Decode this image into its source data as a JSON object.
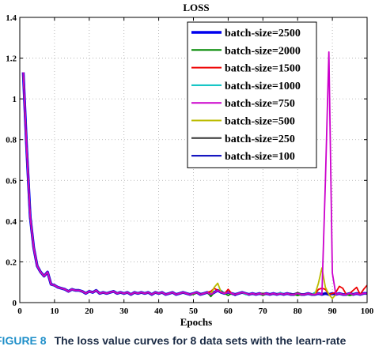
{
  "caption": {
    "label": "FIGURE 8",
    "text": "The loss value curves for 8 data sets with the learn-rate"
  },
  "chart_data": {
    "type": "line",
    "title": "LOSS",
    "xlabel": "Epochs",
    "ylabel": "",
    "xlim": [
      0,
      100
    ],
    "ylim": [
      0,
      1.4
    ],
    "xticks": [
      0,
      10,
      20,
      30,
      40,
      50,
      60,
      70,
      80,
      90,
      100
    ],
    "yticks": [
      0,
      0.2,
      0.4,
      0.6,
      0.8,
      1,
      1.2,
      1.4
    ],
    "ytick_labels": [
      "0",
      "0.2",
      "0.4",
      "0.6",
      "0.8",
      "1",
      "1.2",
      "1.4"
    ],
    "grid": true,
    "legend_position": "top-right",
    "colors": [
      "#0000ee",
      "#008800",
      "#ee0000",
      "#00c0c0",
      "#cc00cc",
      "#bbbb00",
      "#333333",
      "#0000bb"
    ],
    "base_curve": {
      "x": [
        1,
        2,
        3,
        4,
        5,
        6,
        7,
        8,
        9,
        10,
        11,
        12,
        13,
        14,
        15,
        16,
        17,
        18,
        19,
        20,
        21,
        22,
        23,
        24,
        25,
        26,
        27,
        28,
        29,
        30,
        31,
        32,
        33,
        34,
        35,
        36,
        37,
        38,
        39,
        40,
        41,
        42,
        43,
        44,
        45,
        46,
        47,
        48,
        49,
        50,
        51,
        52,
        53,
        54,
        55,
        56,
        57,
        58,
        59,
        60,
        61,
        62,
        63,
        64,
        65,
        66,
        67,
        68,
        69,
        70,
        71,
        72,
        73,
        74,
        75,
        76,
        77,
        78,
        79,
        80,
        81,
        82,
        83,
        84,
        85,
        86,
        87,
        88,
        89,
        90,
        91,
        92,
        93,
        94,
        95,
        96,
        97,
        98,
        99,
        100
      ],
      "y": [
        1.13,
        0.75,
        0.42,
        0.27,
        0.18,
        0.15,
        0.13,
        0.15,
        0.09,
        0.085,
        0.075,
        0.07,
        0.065,
        0.055,
        0.065,
        0.06,
        0.06,
        0.055,
        0.045,
        0.055,
        0.05,
        0.06,
        0.045,
        0.05,
        0.045,
        0.05,
        0.055,
        0.045,
        0.05,
        0.045,
        0.05,
        0.04,
        0.05,
        0.045,
        0.05,
        0.045,
        0.05,
        0.04,
        0.05,
        0.045,
        0.05,
        0.04,
        0.045,
        0.05,
        0.04,
        0.045,
        0.05,
        0.045,
        0.04,
        0.045,
        0.05,
        0.04,
        0.045,
        0.05,
        0.04,
        0.05,
        0.06,
        0.05,
        0.045,
        0.05,
        0.045,
        0.04,
        0.045,
        0.05,
        0.045,
        0.04,
        0.045,
        0.04,
        0.045,
        0.04,
        0.045,
        0.04,
        0.045,
        0.04,
        0.045,
        0.04,
        0.045,
        0.04,
        0.04,
        0.045,
        0.04,
        0.04,
        0.045,
        0.04,
        0.04,
        0.045,
        0.04,
        0.045,
        0.04,
        0.045,
        0.04,
        0.045,
        0.04,
        0.04,
        0.045,
        0.04,
        0.045,
        0.04,
        0.045,
        0.045
      ]
    },
    "series": [
      {
        "name": "batch-size=2500",
        "width": 3.5,
        "offsets": []
      },
      {
        "name": "batch-size=2000",
        "width": 1.8,
        "offsets": [
          [
            50,
            -0.005
          ],
          [
            55,
            -0.01
          ],
          [
            60,
            -0.015
          ],
          [
            70,
            -0.005
          ],
          [
            80,
            -0.01
          ],
          [
            95,
            -0.01
          ]
        ]
      },
      {
        "name": "batch-size=1500",
        "width": 1.8,
        "offsets": [
          [
            55,
            0.015
          ],
          [
            56,
            0.02
          ],
          [
            60,
            0.015
          ],
          [
            86,
            0.02
          ],
          [
            87,
            0.03
          ],
          [
            88,
            0.02
          ],
          [
            91,
            0.01
          ],
          [
            92,
            0.035
          ],
          [
            93,
            0.03
          ],
          [
            96,
            0.02
          ],
          [
            97,
            0.03
          ],
          [
            99,
            0.02
          ],
          [
            100,
            0.04
          ]
        ]
      },
      {
        "name": "batch-size=1000",
        "width": 1.8,
        "offsets": [
          [
            58,
            0.01
          ],
          [
            65,
            -0.005
          ],
          [
            75,
            0.005
          ],
          [
            85,
            0.01
          ]
        ]
      },
      {
        "name": "batch-size=750",
        "width": 1.8,
        "offsets": [
          [
            87,
            0.0
          ],
          [
            88,
            0.55
          ],
          [
            89,
            1.19
          ],
          [
            90,
            0.1
          ]
        ]
      },
      {
        "name": "batch-size=500",
        "width": 1.8,
        "offsets": [
          [
            56,
            0.025
          ],
          [
            57,
            0.035
          ],
          [
            86,
            0.05
          ],
          [
            87,
            0.13
          ],
          [
            88,
            0.03
          ],
          [
            90,
            -0.025
          ]
        ]
      },
      {
        "name": "batch-size=250",
        "width": 1.8,
        "offsets": [
          [
            58,
            0.005
          ],
          [
            70,
            0.005
          ],
          [
            80,
            0.005
          ]
        ]
      },
      {
        "name": "batch-size=100",
        "width": 1.8,
        "offsets": [
          [
            52,
            0.005
          ],
          [
            62,
            -0.005
          ],
          [
            78,
            0.005
          ]
        ]
      }
    ]
  }
}
